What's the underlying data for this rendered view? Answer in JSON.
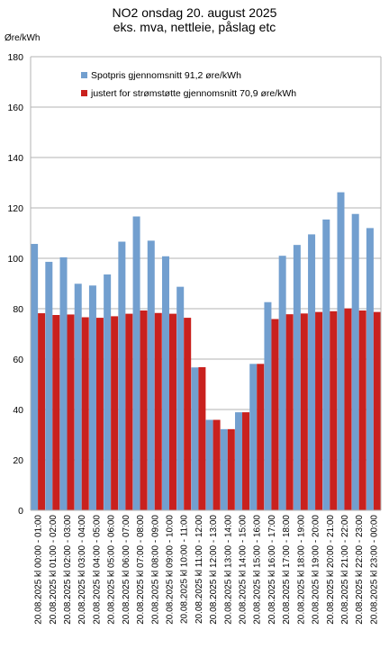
{
  "chart_data": {
    "type": "bar",
    "title": [
      "NO2 onsdag 20. august 2025",
      "eks. mva, nettleie, påslag etc"
    ],
    "ylabel": "Øre/kWh",
    "xlabel": "",
    "ylim": [
      0,
      180
    ],
    "yticks": [
      0,
      20,
      40,
      60,
      80,
      100,
      120,
      140,
      160,
      180
    ],
    "grid": true,
    "legend_position": "top-left",
    "categories": [
      "20.08.2025 kl 00:00 - 01:00",
      "20.08.2025 kl 01:00 - 02:00",
      "20.08.2025 kl 02:00 - 03:00",
      "20.08.2025 kl 03:00 - 04:00",
      "20.08.2025 kl 04:00 - 05:00",
      "20.08.2025 kl 05:00 - 06:00",
      "20.08.2025 kl 06:00 - 07:00",
      "20.08.2025 kl 07:00 - 08:00",
      "20.08.2025 kl 08:00 - 09:00",
      "20.08.2025 kl 09:00 - 10:00",
      "20.08.2025 kl 10:00 - 11:00",
      "20.08.2025 kl 11:00 - 12:00",
      "20.08.2025 kl 12:00 - 13:00",
      "20.08.2025 kl 13:00 - 14:00",
      "20.08.2025 kl 14:00 - 15:00",
      "20.08.2025 kl 15:00 - 16:00",
      "20.08.2025 kl 16:00 - 17:00",
      "20.08.2025 kl 17:00 - 18:00",
      "20.08.2025 kl 18:00 - 19:00",
      "20.08.2025 kl 19:00 - 20:00",
      "20.08.2025 kl 20:00 - 21:00",
      "20.08.2025 kl 21:00 - 22:00",
      "20.08.2025 kl 22:00 - 23:00",
      "20.08.2025 kl 23:00 - 00:00"
    ],
    "series": [
      {
        "name": "Spotpris gjennomsnitt 91,2 øre/kWh",
        "color": "#729fcf",
        "values": [
          105.7,
          98.6,
          100.4,
          89.9,
          89.2,
          93.6,
          106.6,
          116.6,
          107.0,
          100.8,
          88.7,
          56.7,
          35.9,
          32.2,
          38.9,
          58.1,
          82.6,
          101.0,
          105.3,
          109.5,
          115.4,
          126.2,
          117.6,
          112.0
        ]
      },
      {
        "name": "justert for strømstøtte gjennomsnitt 70,9 øre/kWh",
        "color": "#c9211e",
        "values": [
          78.2,
          77.5,
          77.7,
          76.6,
          76.4,
          77.0,
          78.0,
          79.3,
          78.3,
          78.0,
          76.4,
          56.8,
          35.9,
          32.2,
          38.9,
          58.1,
          75.9,
          77.8,
          78.1,
          78.7,
          79.0,
          80.1,
          79.3,
          78.7
        ]
      }
    ]
  }
}
